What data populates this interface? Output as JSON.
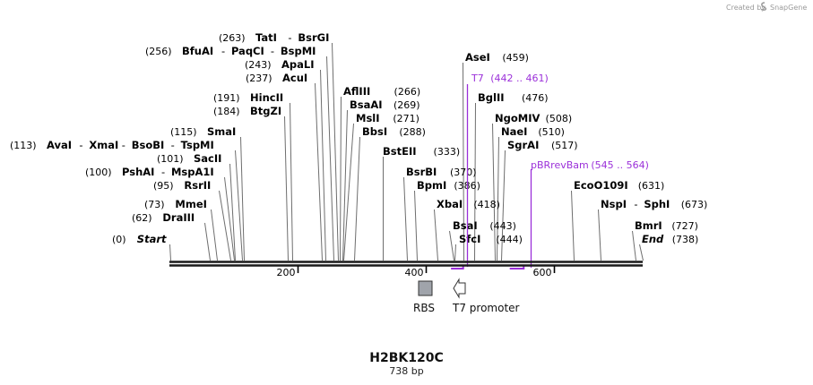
{
  "header": {
    "watermark": "Created by",
    "brand": "SnapGene",
    "brand_color": "#8a8a8a"
  },
  "sequence": {
    "name": "H2BK120C",
    "length_label": "738 bp",
    "length": 738
  },
  "colors": {
    "backbone": "#1a1a1a",
    "leader": "#6e6e6e",
    "primer": "#9b30d9",
    "rbs_fill": "#a0a4ab",
    "promoter_fill": "#ffffff"
  },
  "axis_ticks": [
    {
      "value": 200,
      "label": "200"
    },
    {
      "value": 400,
      "label": "400"
    },
    {
      "value": 600,
      "label": "600"
    }
  ],
  "sites": [
    {
      "pos": 263,
      "pos_label": "(263)",
      "names": [
        "TatI",
        "BsrGI"
      ]
    },
    {
      "pos": 256,
      "pos_label": "(256)",
      "names": [
        "BfuAI",
        "PaqCI",
        "BspMI"
      ]
    },
    {
      "pos": 243,
      "pos_label": "(243)",
      "names": [
        "ApaLI"
      ]
    },
    {
      "pos": 237,
      "pos_label": "(237)",
      "names": [
        "AcuI"
      ]
    },
    {
      "pos": 191,
      "pos_label": "(191)",
      "names": [
        "HincII"
      ]
    },
    {
      "pos": 184,
      "pos_label": "(184)",
      "names": [
        "BtgZI"
      ]
    },
    {
      "pos": 115,
      "pos_label": "(115)",
      "names": [
        "SmaI"
      ]
    },
    {
      "pos": 113,
      "pos_label": "(113)",
      "names": [
        "AvaI",
        "XmaI",
        "BsoBI",
        "TspMI"
      ]
    },
    {
      "pos": 101,
      "pos_label": "(101)",
      "names": [
        "SacII"
      ]
    },
    {
      "pos": 100,
      "pos_label": "(100)",
      "names": [
        "PshAI",
        "MspA1I"
      ]
    },
    {
      "pos": 95,
      "pos_label": "(95)",
      "names": [
        "RsrII"
      ]
    },
    {
      "pos": 73,
      "pos_label": "(73)",
      "names": [
        "MmeI"
      ]
    },
    {
      "pos": 62,
      "pos_label": "(62)",
      "names": [
        "DraIII"
      ]
    },
    {
      "pos": 0,
      "pos_label": "(0)",
      "names": [
        "Start"
      ],
      "italic": true
    },
    {
      "pos": 266,
      "pos_label": "(266)",
      "names": [
        "AflIII"
      ]
    },
    {
      "pos": 269,
      "pos_label": "(269)",
      "names": [
        "BsaAI"
      ]
    },
    {
      "pos": 271,
      "pos_label": "(271)",
      "names": [
        "MslI"
      ]
    },
    {
      "pos": 288,
      "pos_label": "(288)",
      "names": [
        "BbsI"
      ]
    },
    {
      "pos": 333,
      "pos_label": "(333)",
      "names": [
        "BstEII"
      ]
    },
    {
      "pos": 370,
      "pos_label": "(370)",
      "names": [
        "BsrBI"
      ]
    },
    {
      "pos": 386,
      "pos_label": "(386)",
      "names": [
        "BpmI"
      ]
    },
    {
      "pos": 418,
      "pos_label": "(418)",
      "names": [
        "XbaI"
      ]
    },
    {
      "pos": 443,
      "pos_label": "(443)",
      "names": [
        "BsaI"
      ]
    },
    {
      "pos": 444,
      "pos_label": "(444)",
      "names": [
        "SfcI"
      ]
    },
    {
      "pos": 459,
      "pos_label": "(459)",
      "names": [
        "AseI"
      ]
    },
    {
      "pos": 476,
      "pos_label": "(476)",
      "names": [
        "BglII"
      ]
    },
    {
      "pos": 508,
      "pos_label": "(508)",
      "names": [
        "NgoMIV"
      ]
    },
    {
      "pos": 510,
      "pos_label": "(510)",
      "names": [
        "NaeI"
      ]
    },
    {
      "pos": 517,
      "pos_label": "(517)",
      "names": [
        "SgrAI"
      ]
    },
    {
      "pos": 631,
      "pos_label": "(631)",
      "names": [
        "EcoO109I"
      ]
    },
    {
      "pos": 673,
      "pos_label": "(673)",
      "names": [
        "NspI",
        "SphI"
      ]
    },
    {
      "pos": 727,
      "pos_label": "(727)",
      "names": [
        "BmrI"
      ]
    },
    {
      "pos": 738,
      "pos_label": "(738)",
      "names": [
        "End"
      ],
      "italic": true
    }
  ],
  "primers": [
    {
      "name": "T7",
      "range_label": "(442 .. 461)",
      "start": 442,
      "end": 461
    },
    {
      "name": "pBRrevBam",
      "range_label": "(545 .. 564)",
      "start": 545,
      "end": 564
    }
  ],
  "features": [
    {
      "name": "RBS",
      "type": "rbs",
      "start": 395,
      "end": 418
    },
    {
      "name": "T7 promoter",
      "type": "promoter",
      "start": 422,
      "end": 440
    }
  ]
}
